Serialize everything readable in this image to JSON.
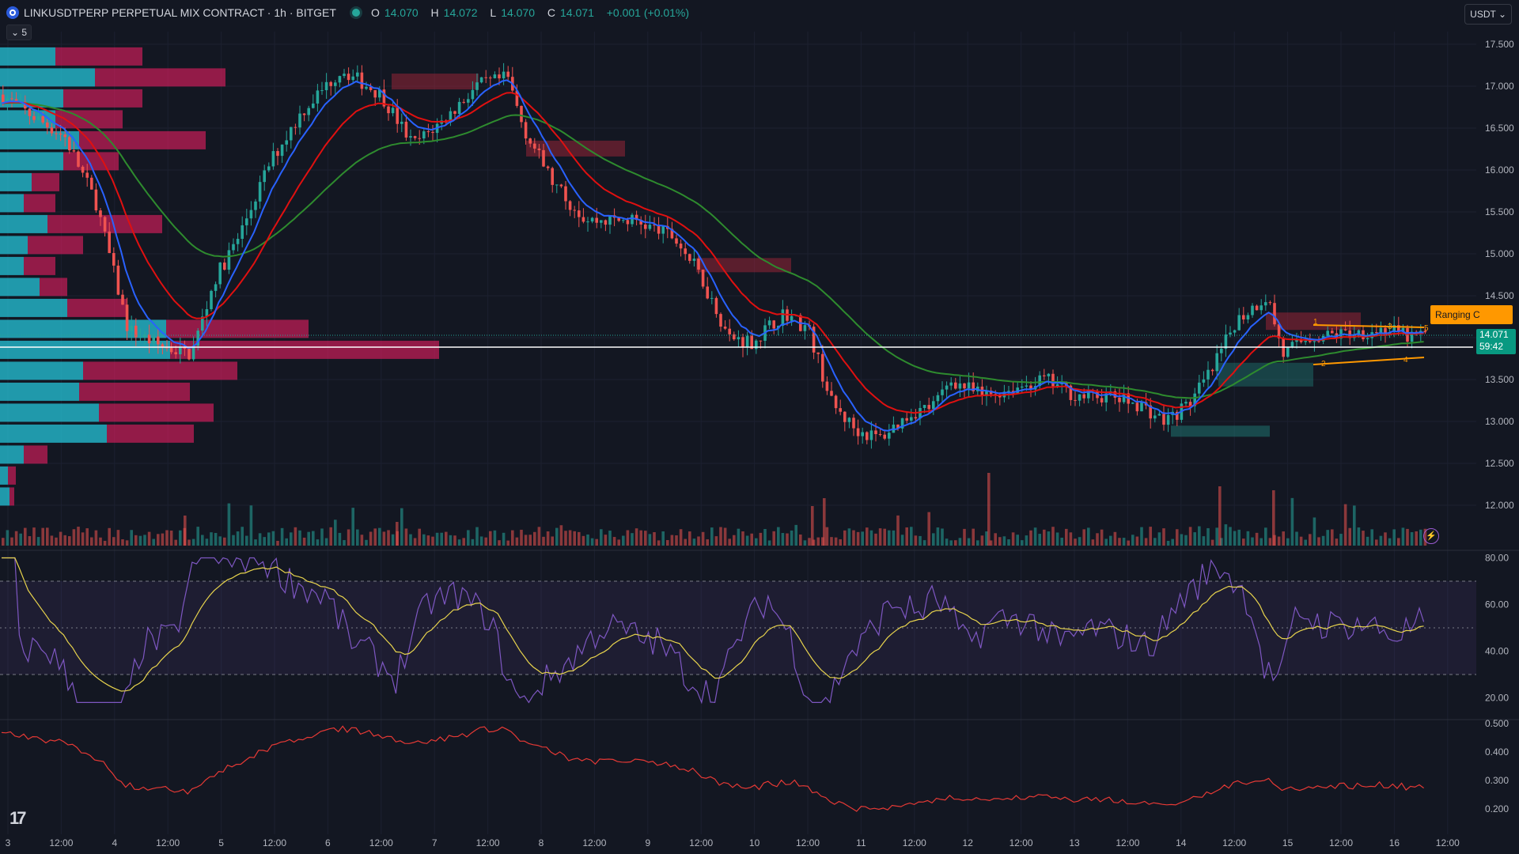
{
  "header": {
    "symbol": "LINKUSDTPERP PERPETUAL MIX CONTRACT · 1h · BITGET",
    "open_label": "O",
    "open": "14.070",
    "high_label": "H",
    "high": "14.072",
    "low_label": "L",
    "low": "14.070",
    "close_label": "C",
    "close": "14.071",
    "change": "+0.001 (+0.01%)",
    "indicator_toggle": "⌄ 5",
    "currency": "USDT ⌄"
  },
  "price_axis": [
    "17.500",
    "17.000",
    "16.500",
    "16.000",
    "15.500",
    "15.000",
    "14.500",
    "14.000",
    "13.500",
    "13.000",
    "12.500",
    "12.000"
  ],
  "rsi_axis": [
    "80.00",
    "60.00",
    "40.00",
    "20.00"
  ],
  "osc_axis": [
    "0.500",
    "0.400",
    "0.300",
    "0.200"
  ],
  "time_axis": [
    "3",
    "12:00",
    "4",
    "12:00",
    "5",
    "12:00",
    "6",
    "12:00",
    "7",
    "12:00",
    "8",
    "12:00",
    "9",
    "12:00",
    "10",
    "12:00",
    "11",
    "12:00",
    "12",
    "12:00",
    "13",
    "12:00",
    "14",
    "12:00",
    "15",
    "12:00",
    "16",
    "12:00"
  ],
  "current_price": {
    "price": "14.071",
    "countdown": "59:42"
  },
  "annotation": {
    "label": "Ranging C"
  },
  "wave_labels": [
    "1",
    "2",
    "3",
    "4",
    "5"
  ],
  "colors": {
    "up": "#26a69a",
    "down": "#ef5350",
    "ema_fast": "#2962ff",
    "ema_mid": "#e01010",
    "ema_slow": "#2e8b2e",
    "rsi": "#7e57c2",
    "rsi_ma": "#e8d44d",
    "osc": "#e53935",
    "background": "#131722"
  },
  "icons": {
    "tradingview_logo": "tradingview-logo-icon",
    "alert": "lightning-icon"
  }
}
